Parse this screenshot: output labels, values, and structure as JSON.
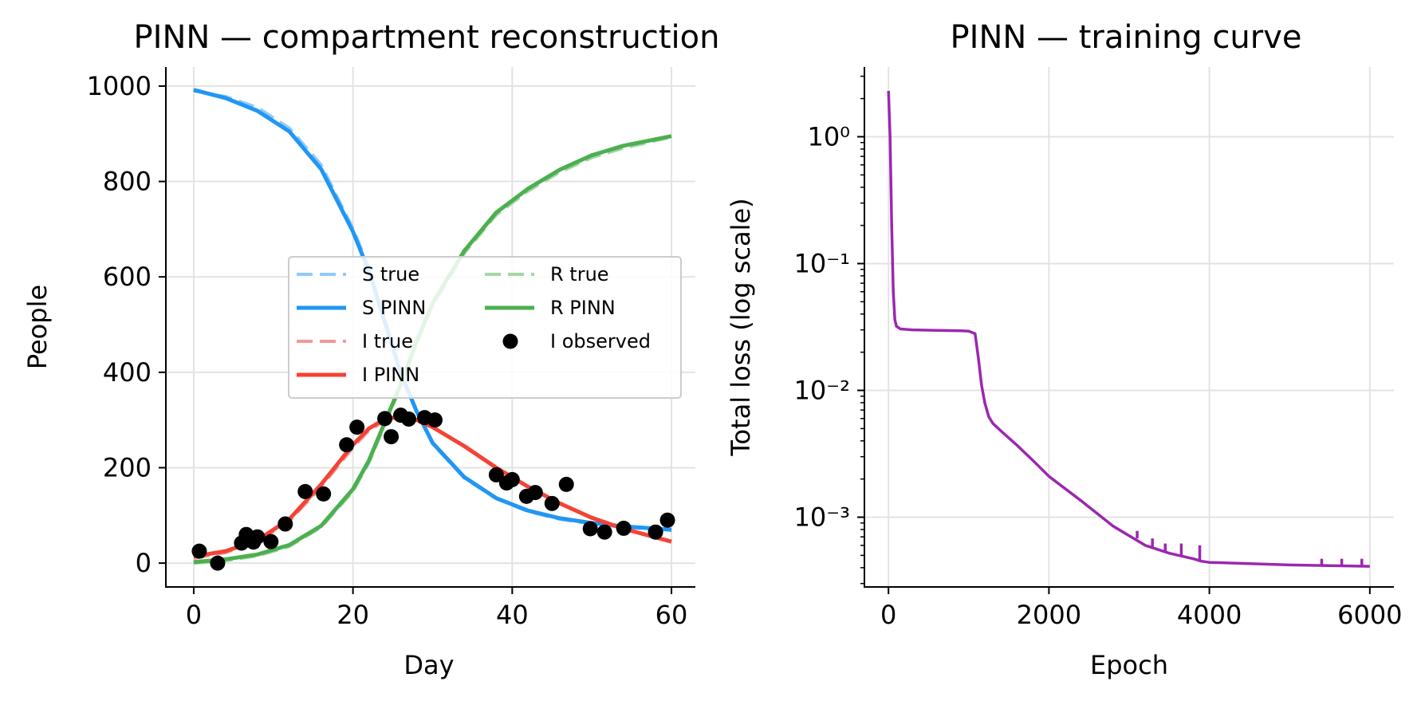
{
  "chart_data": [
    {
      "type": "line",
      "title": "PINN — compartment reconstruction",
      "xlabel": "Day",
      "ylabel": "People",
      "xlim": [
        -3.5,
        63
      ],
      "ylim": [
        -50,
        1040
      ],
      "xticks": [
        0,
        20,
        40,
        60
      ],
      "yticks": [
        0,
        200,
        400,
        600,
        800,
        1000
      ],
      "grid": true,
      "legend_position": "center-right",
      "legend": [
        "S true",
        "S PINN",
        "I true",
        "I PINN",
        "R true",
        "R PINN",
        "I observed"
      ],
      "series": [
        {
          "name": "S true",
          "style": "dashed",
          "color": "#90caf9",
          "x": [
            0,
            4,
            8,
            12,
            16,
            20,
            22,
            24,
            26,
            28,
            30,
            34,
            38,
            42,
            46,
            50,
            54,
            60
          ],
          "y": [
            990,
            978,
            955,
            912,
            835,
            702,
            620,
            512,
            400,
            318,
            250,
            178,
            135,
            108,
            92,
            82,
            75,
            68
          ]
        },
        {
          "name": "S PINN",
          "style": "solid",
          "color": "#2196f3",
          "x": [
            0,
            4,
            8,
            12,
            16,
            20,
            22,
            24,
            26,
            28,
            30,
            34,
            38,
            42,
            46,
            50,
            54,
            60
          ],
          "y": [
            992,
            975,
            948,
            905,
            826,
            695,
            612,
            505,
            398,
            318,
            252,
            180,
            136,
            110,
            94,
            84,
            77,
            70
          ]
        },
        {
          "name": "I true",
          "style": "dashed",
          "color": "#ef9a9a",
          "x": [
            0,
            4,
            8,
            12,
            16,
            20,
            22,
            24,
            26,
            28,
            30,
            34,
            38,
            42,
            46,
            50,
            54,
            60
          ],
          "y": [
            10,
            22,
            45,
            88,
            160,
            242,
            278,
            298,
            305,
            298,
            285,
            245,
            200,
            160,
            125,
            95,
            72,
            45
          ]
        },
        {
          "name": "I PINN",
          "style": "solid",
          "color": "#f44336",
          "x": [
            0,
            4,
            8,
            12,
            16,
            20,
            22,
            24,
            26,
            28,
            30,
            34,
            38,
            42,
            46,
            50,
            54,
            60
          ],
          "y": [
            14,
            25,
            48,
            92,
            165,
            248,
            282,
            302,
            307,
            300,
            285,
            245,
            200,
            160,
            125,
            95,
            72,
            45
          ]
        },
        {
          "name": "R true",
          "style": "dashed",
          "color": "#a5d6a7",
          "x": [
            0,
            4,
            8,
            12,
            16,
            20,
            22,
            24,
            26,
            28,
            30,
            34,
            38,
            42,
            46,
            50,
            54,
            60
          ],
          "y": [
            0,
            5,
            15,
            35,
            75,
            150,
            210,
            290,
            370,
            460,
            540,
            650,
            730,
            780,
            820,
            850,
            870,
            893
          ]
        },
        {
          "name": "R PINN",
          "style": "solid",
          "color": "#4caf50",
          "x": [
            0,
            4,
            8,
            12,
            16,
            20,
            22,
            24,
            26,
            28,
            30,
            34,
            38,
            42,
            46,
            50,
            54,
            60
          ],
          "y": [
            2,
            8,
            18,
            38,
            78,
            155,
            215,
            295,
            375,
            465,
            545,
            655,
            735,
            785,
            825,
            855,
            875,
            895
          ]
        }
      ],
      "scatter": {
        "name": "I observed",
        "color": "#000000",
        "x": [
          0.7,
          3,
          6,
          6.6,
          7.2,
          7.5,
          8,
          9.7,
          11.5,
          14,
          16.3,
          19.2,
          20.5,
          24,
          24.8,
          26,
          27,
          29,
          30.3,
          38,
          39.3,
          40,
          41.8,
          42.9,
          45,
          46.8,
          49.8,
          51.6,
          54,
          58,
          59.5
        ],
        "y": [
          25,
          0,
          42,
          60,
          48,
          44,
          55,
          45,
          82,
          150,
          145,
          248,
          285,
          303,
          265,
          310,
          302,
          305,
          300,
          185,
          168,
          175,
          140,
          148,
          125,
          165,
          72,
          65,
          73,
          65,
          90
        ]
      }
    },
    {
      "type": "line",
      "title": "PINN — training curve",
      "xlabel": "Epoch",
      "ylabel": "Total loss (log scale)",
      "yscale": "log",
      "xlim": [
        -300,
        6300
      ],
      "ylim_log10": [
        -3.55,
        0.55
      ],
      "xticks": [
        0,
        2000,
        4000,
        6000
      ],
      "yticks_exponents": [
        0,
        -1,
        -2,
        -3
      ],
      "ytick_labels": [
        "10⁰",
        "10⁻¹",
        "10⁻²",
        "10⁻³"
      ],
      "grid": true,
      "series": [
        {
          "name": "Total loss",
          "color": "#9c27b0",
          "x": [
            0,
            20,
            40,
            60,
            80,
            100,
            150,
            300,
            600,
            900,
            1000,
            1080,
            1120,
            1160,
            1200,
            1250,
            1300,
            1400,
            1600,
            1800,
            2000,
            2400,
            2800,
            3200,
            3500,
            3800,
            3900,
            4000,
            4500,
            5000,
            5500,
            6000
          ],
          "y": [
            2.3,
            1.0,
            0.2,
            0.06,
            0.036,
            0.032,
            0.0305,
            0.03,
            0.0297,
            0.0295,
            0.0293,
            0.028,
            0.018,
            0.011,
            0.008,
            0.0062,
            0.0055,
            0.0048,
            0.0037,
            0.0028,
            0.0021,
            0.00135,
            0.00085,
            0.0006,
            0.00052,
            0.00047,
            0.00045,
            0.00044,
            0.00043,
            0.00042,
            0.000415,
            0.00041
          ]
        }
      ],
      "spikes": [
        {
          "x": 3100,
          "base": 0.00068,
          "peak": 0.00078
        },
        {
          "x": 3290,
          "base": 0.00058,
          "peak": 0.00068
        },
        {
          "x": 3450,
          "base": 0.00053,
          "peak": 0.00062
        },
        {
          "x": 3650,
          "base": 0.00049,
          "peak": 0.00062
        },
        {
          "x": 3880,
          "base": 0.00045,
          "peak": 0.0006
        },
        {
          "x": 5400,
          "base": 0.000415,
          "peak": 0.00047
        },
        {
          "x": 5650,
          "base": 0.000413,
          "peak": 0.00047
        },
        {
          "x": 5900,
          "base": 0.00041,
          "peak": 0.00047
        }
      ]
    }
  ]
}
